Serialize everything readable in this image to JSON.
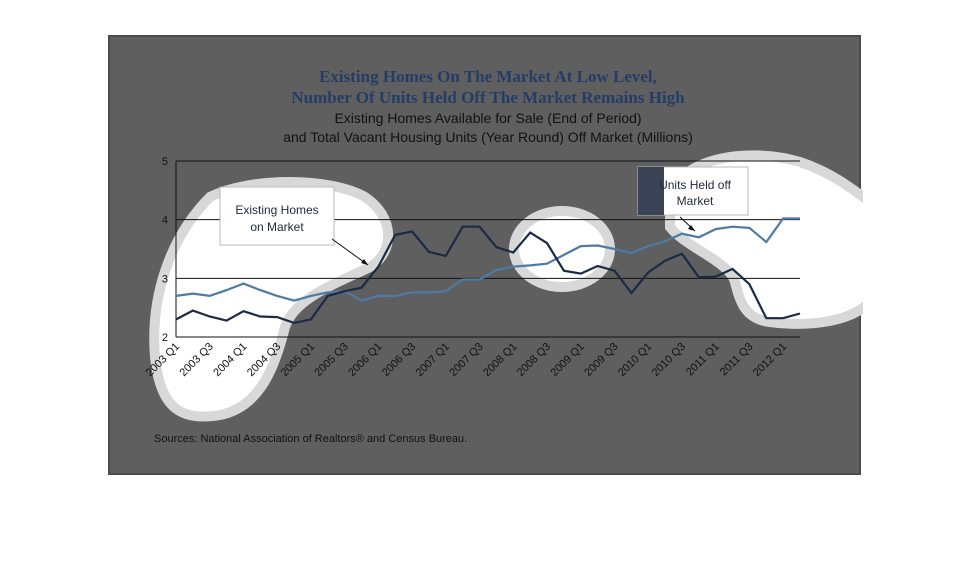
{
  "chart_data": {
    "type": "line",
    "title": "Existing Homes On The Market At Low Level,",
    "title_line2": "Number Of Units Held Off The Market Remains High",
    "subtitle": "Existing Homes Available for Sale (End of Period)",
    "subtitle_line2": "and Total Vacant Housing Units (Year Round) Off Market (Millions)",
    "source": "Sources: National Association of Realtors® and Census Bureau.",
    "ylim": [
      2,
      5
    ],
    "yticks": [
      "2",
      "3",
      "4",
      "5"
    ],
    "grid": true,
    "x": [
      "2003 Q1",
      "2003 Q2",
      "2003 Q3",
      "2003 Q4",
      "2004 Q1",
      "2004 Q2",
      "2004 Q3",
      "2004 Q4",
      "2005 Q1",
      "2005 Q2",
      "2005 Q3",
      "2005 Q4",
      "2006 Q1",
      "2006 Q2",
      "2006 Q3",
      "2006 Q4",
      "2007 Q1",
      "2007 Q2",
      "2007 Q3",
      "2007 Q4",
      "2008 Q1",
      "2008 Q2",
      "2008 Q3",
      "2008 Q4",
      "2009 Q1",
      "2009 Q2",
      "2009 Q3",
      "2009 Q4",
      "2010 Q1",
      "2010 Q2",
      "2010 Q3",
      "2010 Q4",
      "2011 Q1",
      "2011 Q2",
      "2011 Q3",
      "2011 Q4",
      "2012 Q1",
      "2012 Q2"
    ],
    "xtick_labels": [
      "2003 Q1",
      "2003 Q3",
      "2004 Q1",
      "2004 Q3",
      "2005 Q1",
      "2005 Q3",
      "2006 Q1",
      "2006 Q3",
      "2007 Q1",
      "2007 Q3",
      "2008 Q1",
      "2008 Q3",
      "2009 Q1",
      "2009 Q3",
      "2010 Q1",
      "2010 Q3",
      "2011 Q1",
      "2011 Q3",
      "2012 Q1"
    ],
    "series": [
      {
        "name": "Existing Homes on Market",
        "color": "#1c2a44",
        "values": [
          2.3,
          2.45,
          2.35,
          2.28,
          2.44,
          2.35,
          2.34,
          2.24,
          2.3,
          2.7,
          2.78,
          2.84,
          3.2,
          3.74,
          3.8,
          3.45,
          3.38,
          3.88,
          3.88,
          3.53,
          3.44,
          3.78,
          3.6,
          3.13,
          3.08,
          3.21,
          3.13,
          2.75,
          3.1,
          3.3,
          3.42,
          3.02,
          3.03,
          3.16,
          2.9,
          2.32,
          2.32,
          2.4
        ]
      },
      {
        "name": "Units Held off Market",
        "color": "#4f7aa6",
        "values": [
          2.7,
          2.74,
          2.7,
          2.8,
          2.91,
          2.8,
          2.7,
          2.62,
          2.7,
          2.76,
          2.78,
          2.62,
          2.7,
          2.7,
          2.76,
          2.76,
          2.78,
          2.98,
          2.98,
          3.14,
          3.2,
          3.22,
          3.25,
          3.4,
          3.55,
          3.56,
          3.5,
          3.43,
          3.55,
          3.63,
          3.76,
          3.7,
          3.84,
          3.88,
          3.86,
          3.62,
          4.02,
          4.02
        ]
      }
    ],
    "annotations": [
      {
        "label_line1": "Existing Homes",
        "label_line2": "on Market",
        "series": "Existing Homes on Market"
      },
      {
        "label_line1": "Units Held off",
        "label_line2": "Market",
        "series": "Units Held off Market"
      }
    ]
  }
}
